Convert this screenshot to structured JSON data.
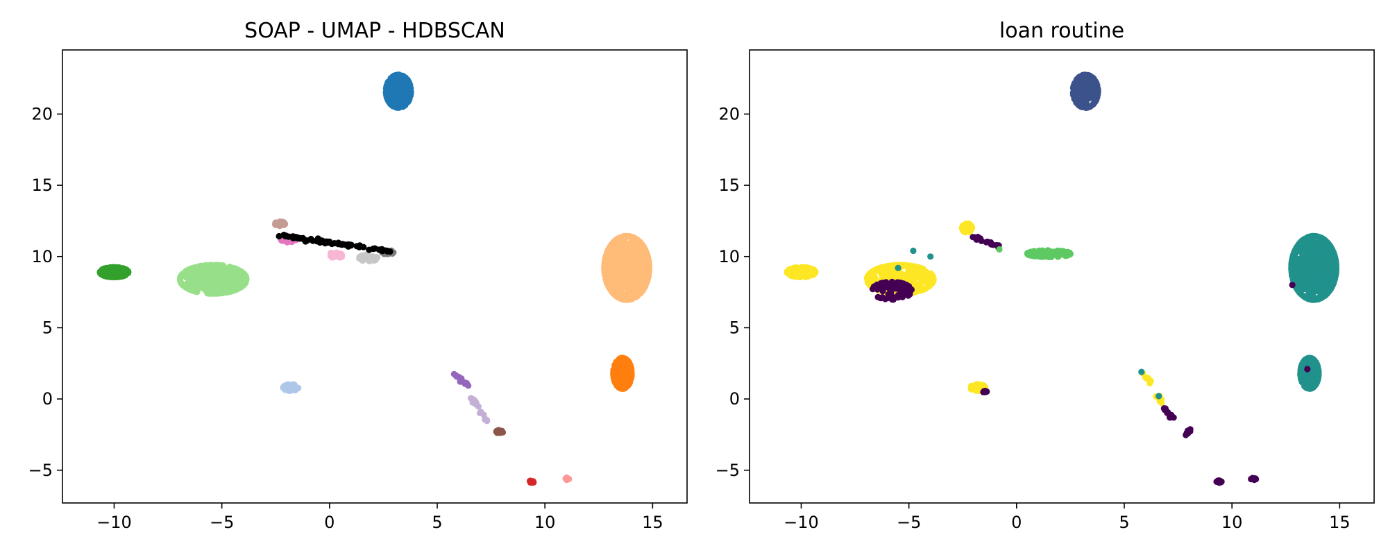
{
  "chart_data": [
    {
      "type": "scatter",
      "title": "SOAP - UMAP - HDBSCAN",
      "xlabel": "",
      "ylabel": "",
      "xlim": [
        -12.4,
        16.6
      ],
      "ylim": [
        -7.3,
        24.5
      ],
      "xticks": [
        -10,
        -5,
        0,
        5,
        10,
        15
      ],
      "xtick_labels": [
        "−10",
        "−5",
        "0",
        "5",
        "10",
        "15"
      ],
      "yticks": [
        -5,
        0,
        5,
        10,
        15,
        20
      ],
      "ytick_labels": [
        "−5",
        "0",
        "5",
        "10",
        "15",
        "20"
      ],
      "grid": false,
      "legend": "none",
      "clusters": [
        {
          "color": "#1f77b4",
          "center": [
            3.2,
            21.6
          ],
          "spread": [
            0.75,
            1.5
          ],
          "n": 220
        },
        {
          "color": "#33a02c",
          "center": [
            -10.0,
            8.9
          ],
          "spread": [
            0.85,
            0.45
          ],
          "n": 160
        },
        {
          "color": "#98df8a",
          "center": [
            -5.4,
            8.4
          ],
          "spread": [
            2.0,
            1.3
          ],
          "n": 420
        },
        {
          "color": "#ffbb78",
          "center": [
            13.8,
            9.2
          ],
          "spread": [
            1.35,
            2.9
          ],
          "n": 620
        },
        {
          "color": "#ff7f0e",
          "center": [
            13.6,
            1.8
          ],
          "spread": [
            0.55,
            1.4
          ],
          "n": 170
        },
        {
          "color": "#aec7e8",
          "center": [
            -1.8,
            0.8
          ],
          "spread": [
            0.45,
            0.3
          ],
          "n": 40
        },
        {
          "color": "#c49c94",
          "center": [
            -2.3,
            12.3
          ],
          "spread": [
            0.3,
            0.2
          ],
          "n": 20
        },
        {
          "color": "#e377c2",
          "center": [
            -1.9,
            11.2
          ],
          "spread": [
            0.45,
            0.25
          ],
          "n": 45
        },
        {
          "color": "#f7b6d2",
          "center": [
            0.3,
            10.1
          ],
          "spread": [
            0.45,
            0.25
          ],
          "n": 35
        },
        {
          "color": "#c7c7c7",
          "center": [
            1.8,
            9.9
          ],
          "spread": [
            0.55,
            0.3
          ],
          "n": 40
        },
        {
          "color": "#7f7f7f",
          "center": [
            2.7,
            10.3
          ],
          "spread": [
            0.35,
            0.2
          ],
          "n": 20
        },
        {
          "color": "#8c564b",
          "center": [
            7.9,
            -2.3
          ],
          "spread": [
            0.2,
            0.15
          ],
          "n": 12
        },
        {
          "color": "#d62728",
          "center": [
            9.4,
            -5.8
          ],
          "spread": [
            0.15,
            0.1
          ],
          "n": 10
        },
        {
          "color": "#ff9896",
          "center": [
            11.0,
            -5.6
          ],
          "spread": [
            0.15,
            0.1
          ],
          "n": 8
        }
      ],
      "segments": [
        {
          "color": "#000000",
          "from": [
            -2.4,
            11.5
          ],
          "to": [
            2.8,
            10.4
          ],
          "n": 70
        },
        {
          "color": "#9467bd",
          "from": [
            5.8,
            1.8
          ],
          "to": [
            6.4,
            1.0
          ],
          "n": 14
        },
        {
          "color": "#c5b0d5",
          "from": [
            6.5,
            0.2
          ],
          "to": [
            7.3,
            -1.5
          ],
          "n": 18
        }
      ]
    },
    {
      "type": "scatter",
      "title": "loan routine",
      "xlabel": "",
      "ylabel": "",
      "xlim": [
        -12.4,
        16.6
      ],
      "ylim": [
        -7.3,
        24.5
      ],
      "xticks": [
        -10,
        -5,
        0,
        5,
        10,
        15
      ],
      "xtick_labels": [
        "−10",
        "−5",
        "0",
        "5",
        "10",
        "15"
      ],
      "yticks": [
        -5,
        0,
        5,
        10,
        15,
        20
      ],
      "ytick_labels": [
        "−5",
        "0",
        "5",
        "10",
        "15",
        "20"
      ],
      "grid": false,
      "legend": "none",
      "clusters": [
        {
          "color": "#3b528b",
          "center": [
            3.2,
            21.6
          ],
          "spread": [
            0.75,
            1.5
          ],
          "n": 220
        },
        {
          "color": "#fde725",
          "center": [
            -10.0,
            8.9
          ],
          "spread": [
            0.85,
            0.45
          ],
          "n": 160
        },
        {
          "color": "#fde725",
          "center": [
            -5.4,
            8.4
          ],
          "spread": [
            2.0,
            1.3
          ],
          "n": 360
        },
        {
          "color": "#440154",
          "center": [
            -5.8,
            7.6
          ],
          "spread": [
            1.2,
            0.8
          ],
          "n": 70
        },
        {
          "color": "#21918c",
          "center": [
            13.8,
            9.2
          ],
          "spread": [
            1.35,
            2.9
          ],
          "n": 620
        },
        {
          "color": "#21918c",
          "center": [
            13.6,
            1.8
          ],
          "spread": [
            0.55,
            1.4
          ],
          "n": 170
        },
        {
          "color": "#fde725",
          "center": [
            -1.8,
            0.8
          ],
          "spread": [
            0.45,
            0.3
          ],
          "n": 40
        },
        {
          "color": "#440154",
          "center": [
            -1.5,
            0.5
          ],
          "spread": [
            0.15,
            0.1
          ],
          "n": 6
        },
        {
          "color": "#fde725",
          "center": [
            -2.3,
            12.0
          ],
          "spread": [
            0.3,
            0.4
          ],
          "n": 30
        },
        {
          "color": "#5ec962",
          "center": [
            1.5,
            10.2
          ],
          "spread": [
            1.3,
            0.3
          ],
          "n": 120
        },
        {
          "color": "#440154",
          "center": [
            9.4,
            -5.8
          ],
          "spread": [
            0.15,
            0.1
          ],
          "n": 10
        },
        {
          "color": "#440154",
          "center": [
            11.0,
            -5.6
          ],
          "spread": [
            0.15,
            0.1
          ],
          "n": 8
        }
      ],
      "segments": [
        {
          "color": "#440154",
          "from": [
            -2.0,
            11.4
          ],
          "to": [
            -0.8,
            10.6
          ],
          "n": 18
        },
        {
          "color": "#fde725",
          "from": [
            5.9,
            1.8
          ],
          "to": [
            6.2,
            1.2
          ],
          "n": 8
        },
        {
          "color": "#fde725",
          "from": [
            6.6,
            0.2
          ],
          "to": [
            6.8,
            -0.3
          ],
          "n": 6
        },
        {
          "color": "#440154",
          "from": [
            6.8,
            -0.6
          ],
          "to": [
            7.3,
            -1.5
          ],
          "n": 14
        },
        {
          "color": "#440154",
          "from": [
            7.8,
            -2.5
          ],
          "to": [
            8.1,
            -2.2
          ],
          "n": 10
        }
      ],
      "scatter_points": [
        {
          "color": "#21918c",
          "x": -4.8,
          "y": 10.4
        },
        {
          "color": "#21918c",
          "x": -4.0,
          "y": 10.0
        },
        {
          "color": "#21918c",
          "x": -5.5,
          "y": 9.2
        },
        {
          "color": "#21918c",
          "x": 5.8,
          "y": 1.9
        },
        {
          "color": "#21918c",
          "x": 6.6,
          "y": 0.2
        },
        {
          "color": "#440154",
          "x": 12.8,
          "y": 8.0
        },
        {
          "color": "#440154",
          "x": 13.5,
          "y": 2.1
        },
        {
          "color": "#5ec962",
          "x": -0.8,
          "y": 10.5
        }
      ]
    }
  ]
}
